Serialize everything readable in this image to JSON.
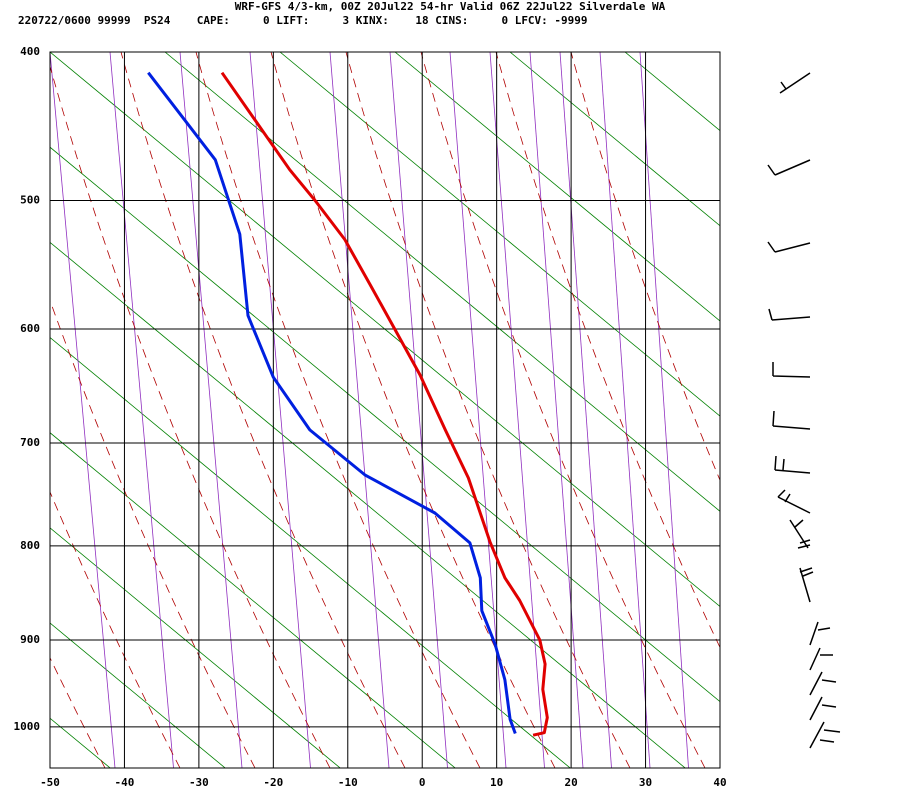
{
  "chart_data": {
    "type": "skewt",
    "title": "WRF-GFS 4/3-km, 00Z 20Jul22 54-hr Valid 06Z 22Jul22 Silverdale WA",
    "subtitle": "220722/0600 99999  PS24    CAPE:     0 LIFT:     3 KINX:    18 CINS:     0 LFCV: -9999",
    "xlim": [
      -50,
      40
    ],
    "xticks": [
      -50,
      -40,
      -30,
      -20,
      -10,
      0,
      10,
      20,
      30,
      40
    ],
    "ylim": [
      400,
      1050
    ],
    "yticks": [
      400,
      500,
      600,
      700,
      800,
      900,
      1000
    ],
    "grid": true,
    "series": [
      {
        "color": "#e00000",
        "pressure": [
          413,
          478,
          500,
          529,
          564,
          600,
          639,
          688,
          733,
          796,
          833,
          857,
          900,
          927,
          956,
          989,
          1007,
          1010
        ],
        "values": [
          -26.9,
          -17.8,
          -14.4,
          -10.4,
          -7.0,
          -3.7,
          -0.3,
          3.1,
          6.2,
          9.1,
          11.1,
          13.1,
          15.8,
          16.5,
          16.2,
          16.8,
          16.4,
          14.9
        ]
      },
      {
        "color": "#0020e0",
        "pressure": [
          413,
          471,
          525,
          589,
          641,
          688,
          730,
          767,
          797,
          833,
          868,
          905,
          945,
          991,
          1008
        ],
        "values": [
          -36.8,
          -27.8,
          -24.5,
          -23.4,
          -20.0,
          -15.1,
          -7.7,
          1.7,
          6.4,
          7.8,
          8.0,
          9.8,
          11.1,
          11.8,
          12.5
        ]
      }
    ]
  }
}
